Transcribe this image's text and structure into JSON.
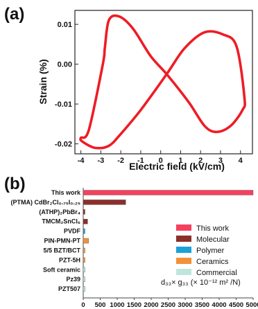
{
  "panels": {
    "a_label": "(a)",
    "b_label": "(b)"
  },
  "chart_data": [
    {
      "type": "line",
      "xlabel": "Electric field (kV/cm)",
      "ylabel": "Strain (%)",
      "xlim": [
        -4.3,
        4.6
      ],
      "ylim": [
        -0.0225,
        0.0135
      ],
      "xticks": [
        "-4",
        "-3",
        "-2",
        "-1",
        "0",
        "1",
        "2",
        "3",
        "4"
      ],
      "yticks": [
        "0.01",
        "0.00",
        "-0.01",
        "-0.02"
      ],
      "ytick_values": [
        0.01,
        0.0,
        -0.01,
        -0.02
      ],
      "color": "#ee1c25",
      "x": [
        0.3,
        -0.5,
        -1.4,
        -2.1,
        -2.6,
        -2.8,
        -2.9,
        -3.6,
        -4.0,
        -3.9,
        -3.3,
        -2.6,
        -2.0,
        -1.0,
        0.3,
        1.2,
        2.2,
        3.1,
        3.8,
        4.2,
        4.1,
        3.5,
        2.8,
        2.2,
        1.4,
        0.3
      ],
      "y": [
        -0.0025,
        0.002,
        0.009,
        0.012,
        0.011,
        0.004,
        0.0,
        -0.0165,
        -0.0185,
        -0.0195,
        -0.021,
        -0.0205,
        -0.0175,
        -0.0115,
        -0.0025,
        0.004,
        0.008,
        0.0075,
        0.0045,
        -0.0085,
        -0.0115,
        -0.0155,
        -0.017,
        -0.0155,
        -0.0095,
        -0.0025
      ]
    },
    {
      "type": "bar",
      "orientation": "horizontal",
      "categories": [
        "This work",
        "(PTMA) CdBr₂Cl₀.₇₅I₀.₂₅",
        "(ATHP)₂PbBr₄",
        "TMCM₂SnCl₆",
        "PVDF",
        "PIN-PMN-PT",
        "5/5 BZT/BCT",
        "PZT-5H",
        "Soft ceramic",
        "Pz39",
        "PZT507"
      ],
      "values": [
        5000,
        1250,
        50,
        130,
        12,
        160,
        35,
        30,
        28,
        20,
        15
      ],
      "groups": [
        "This work",
        "Molecular",
        "Molecular",
        "Molecular",
        "Polymer",
        "Ceramics",
        "Ceramics",
        "Ceramics",
        "Commercial",
        "Commercial",
        "Commercial"
      ],
      "xticks": [
        "0",
        "500",
        "1000",
        "1500",
        "2000",
        "2500",
        "3000",
        "3500",
        "4000",
        "4500",
        "5000"
      ],
      "xlim": [
        0,
        5000
      ],
      "legend": [
        {
          "name": "This work",
          "color": "#f5415f"
        },
        {
          "name": "Molecular",
          "color": "#8b2f2b"
        },
        {
          "name": "Polymer",
          "color": "#1aa2d8"
        },
        {
          "name": "Ceramics",
          "color": "#f3913a"
        },
        {
          "name": "Commercial",
          "color": "#bfe6dc"
        }
      ],
      "legend_position": "lower-right",
      "unit_label": "d₃₃× g₃₃ (× 10⁻¹² m² /N)"
    }
  ]
}
